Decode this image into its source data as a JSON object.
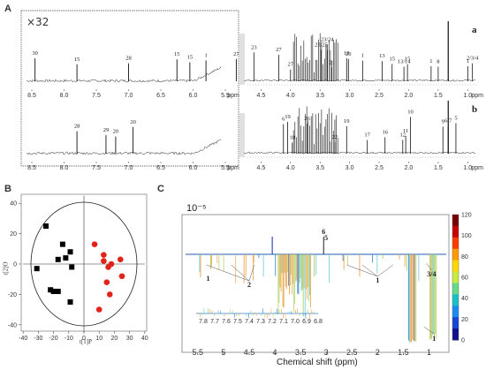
{
  "panels": {
    "A": {
      "label": "A",
      "zoom_factor": "×32",
      "left_axis_ticks": [
        "8.5",
        "8.0",
        "7.5",
        "7.0",
        "6.5",
        "6.0",
        "5.5"
      ],
      "right_axis_ticks": [
        "4.5",
        "4.0",
        "3.5",
        "3.0",
        "2.5",
        "2.0",
        "1.5",
        "1.0"
      ],
      "ppm_label": "ppm",
      "trace_a_label": "a",
      "trace_b_label": "b",
      "left_peaks_a": [
        {
          "label": "30",
          "ppm": 8.45
        },
        {
          "label": "15",
          "ppm": 7.8
        },
        {
          "label": "28",
          "ppm": 7.0
        },
        {
          "label": "15",
          "ppm": 6.25
        },
        {
          "label": "15",
          "ppm": 6.05
        },
        {
          "label": "1",
          "ppm": 5.8
        },
        {
          "label": "27",
          "ppm": 5.33
        }
      ],
      "right_peaks_a": [
        {
          "label": "23",
          "ppm": 4.62
        },
        {
          "label": "27",
          "ppm": 4.2
        },
        {
          "label": "27",
          "ppm": 4.0
        },
        {
          "label": "23/25",
          "ppm": 3.48
        },
        {
          "label": "23/24",
          "ppm": 3.38
        },
        {
          "label": "21",
          "ppm": 3.3
        },
        {
          "label": "18",
          "ppm": 3.05
        },
        {
          "label": "20",
          "ppm": 3.02
        },
        {
          "label": "1",
          "ppm": 2.78
        },
        {
          "label": "13/14",
          "ppm": 2.08
        },
        {
          "label": "13",
          "ppm": 2.45
        },
        {
          "label": "15",
          "ppm": 2.28
        },
        {
          "label": "15",
          "ppm": 2.02
        },
        {
          "label": "1",
          "ppm": 1.62
        },
        {
          "label": "8",
          "ppm": 1.5
        },
        {
          "label": "1",
          "ppm": 1.0
        },
        {
          "label": "2/3/4",
          "ppm": 0.92
        }
      ],
      "left_peaks_b": [
        {
          "label": "28",
          "ppm": 7.8
        },
        {
          "label": "29",
          "ppm": 7.35
        },
        {
          "label": "20",
          "ppm": 7.2
        },
        {
          "label": "20",
          "ppm": 6.93
        }
      ],
      "right_peaks_b": [
        {
          "label": "6",
          "ppm": 4.12
        },
        {
          "label": "18",
          "ppm": 3.97
        },
        {
          "label": "19",
          "ppm": 4.05
        },
        {
          "label": "26",
          "ppm": 3.72
        },
        {
          "label": "22",
          "ppm": 3.25
        },
        {
          "label": "19",
          "ppm": 3.05
        },
        {
          "label": "17",
          "ppm": 2.7
        },
        {
          "label": "16",
          "ppm": 2.4
        },
        {
          "label": "12",
          "ppm": 2.1
        },
        {
          "label": "11",
          "ppm": 2.05
        },
        {
          "label": "10",
          "ppm": 1.97
        },
        {
          "label": "6/7",
          "ppm": 1.33
        },
        {
          "label": "9",
          "ppm": 1.42
        },
        {
          "label": "5",
          "ppm": 1.2
        }
      ]
    },
    "B": {
      "label": "B",
      "x_ticks": [
        "-40",
        "-30",
        "-20",
        "-10",
        "0",
        "10",
        "20",
        "30",
        "40"
      ],
      "y_ticks": [
        "40",
        "20",
        "0",
        "-20",
        "-40"
      ],
      "x_axis_label": "t[1]P",
      "y_axis_label": "t[2]O",
      "group_black": [
        [
          -25,
          25
        ],
        [
          -14,
          13
        ],
        [
          -9,
          8
        ],
        [
          -17,
          3
        ],
        [
          -8,
          -2
        ],
        [
          -12,
          4
        ],
        [
          -31,
          -3
        ],
        [
          -20,
          -18
        ],
        [
          -17,
          -18
        ],
        [
          -22,
          -17
        ],
        [
          -9,
          -25
        ]
      ],
      "group_red": [
        [
          7,
          13
        ],
        [
          13,
          6
        ],
        [
          16,
          -2
        ],
        [
          18,
          0
        ],
        [
          24,
          3
        ],
        [
          17,
          -20
        ],
        [
          10,
          -30
        ],
        [
          15,
          -12
        ],
        [
          25,
          -8
        ],
        [
          13,
          2
        ]
      ],
      "colors": {
        "black": "#000000",
        "red": "#e2231a"
      }
    },
    "C": {
      "label": "C",
      "scale_label": "10⁻⁵",
      "x_ticks": [
        "5.5",
        "5",
        "4.5",
        "4",
        "3.5",
        "3",
        "2.5",
        "2",
        "1.5",
        "1"
      ],
      "x_axis_label": "Chemical shift (ppm)",
      "colorbar_ticks": [
        "120",
        "100",
        "80",
        "60",
        "40",
        "20",
        "0"
      ],
      "annotations": [
        "1",
        "2",
        "6",
        "5",
        "1",
        "3/4",
        "1"
      ],
      "inset_ticks": [
        "7.8",
        "7.7",
        "7.6",
        "7.5",
        "7.4",
        "7.3",
        "7.2",
        "7.1",
        "7.0",
        "6.9",
        "6.8"
      ]
    }
  }
}
